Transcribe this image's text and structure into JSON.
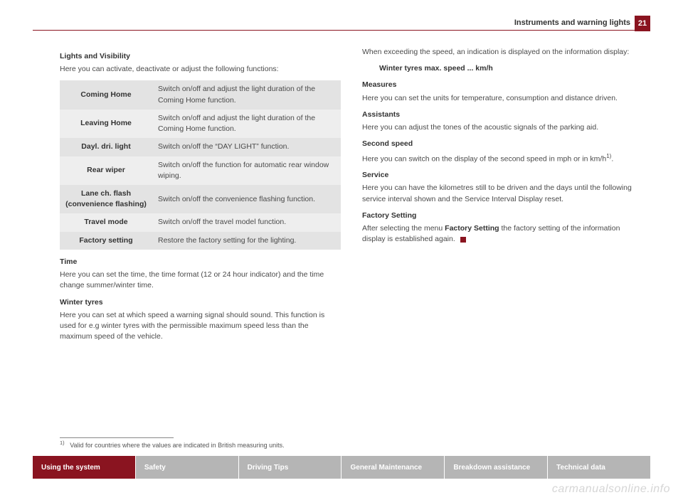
{
  "header": {
    "title": "Instruments and warning lights",
    "page_number": "21"
  },
  "left": {
    "h1": "Lights and Visibility",
    "intro": "Here you can activate, deactivate or adjust the following functions:",
    "table": [
      {
        "label": "Coming Home",
        "desc": "Switch on/off and adjust the light duration of the Coming Home function."
      },
      {
        "label": "Leaving Home",
        "desc": "Switch on/off and adjust the light duration of the Coming Home function."
      },
      {
        "label": "Dayl. dri. light",
        "desc": "Switch on/off the “DAY LIGHT” function."
      },
      {
        "label": "Rear wiper",
        "desc": "Switch on/off the function for automatic rear window wiping."
      },
      {
        "label": "Lane ch. flash (convenience flashing)",
        "desc": "Switch on/off the convenience flashing function."
      },
      {
        "label": "Travel mode",
        "desc": "Switch on/off the travel model function."
      },
      {
        "label": "Factory setting",
        "desc": "Restore the factory setting for the lighting."
      }
    ],
    "time_h": "Time",
    "time_p": "Here you can set the time, the time format (12 or 24 hour indicator) and the time change summer/winter time.",
    "winter_h": "Winter tyres",
    "winter_p": "Here you can set at which speed a warning signal should sound. This function is used for e.g winter tyres with the permissible maximum speed less than the maximum speed of the vehicle."
  },
  "right": {
    "exceed": "When exceeding the speed, an indication is displayed on the information display:",
    "exceed_msg": "Winter tyres max. speed ... km/h",
    "measures_h": "Measures",
    "measures_p": "Here you can set the units for temperature, consumption and distance driven.",
    "assist_h": "Assistants",
    "assist_p": "Here you can adjust the tones of the acoustic signals of the parking aid.",
    "second_h": "Second speed",
    "second_p_pre": "Here you can switch on the display of the second speed in mph or in km/h",
    "second_p_sup": "1)",
    "second_p_post": ".",
    "service_h": "Service",
    "service_p": "Here you can have the kilometres still to be driven and the days until the following service interval shown and the Service Interval Display reset.",
    "factory_h": "Factory Setting",
    "factory_p_pre": "After selecting the menu ",
    "factory_p_bold": "Factory Setting",
    "factory_p_post": " the factory setting of the information display is established again."
  },
  "footnote": {
    "marker": "1)",
    "text": "Valid for countries where the values are indicated in British measuring units."
  },
  "tabs": [
    "Using the system",
    "Safety",
    "Driving Tips",
    "General Maintenance",
    "Breakdown assistance",
    "Technical data"
  ],
  "watermark": "carmanualsonline.info",
  "colors": {
    "accent": "#8a1420",
    "tab_inactive": "#b5b5b5",
    "row_odd": "#e3e3e3",
    "row_even": "#eeeeee"
  }
}
